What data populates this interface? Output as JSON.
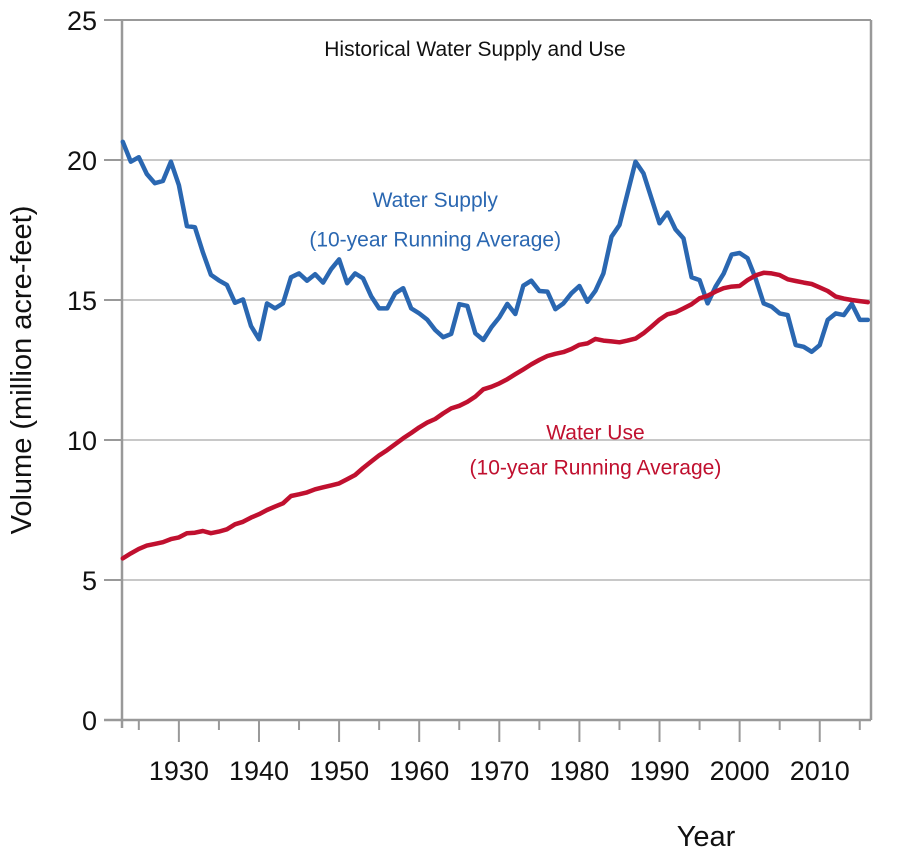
{
  "chart_data": {
    "type": "line",
    "title": "Historical Water Supply and Use",
    "xlabel": "Year",
    "ylabel": "Volume (million acre-feet)",
    "xlim": [
      1923,
      2016
    ],
    "ylim": [
      0,
      25
    ],
    "grid": true,
    "x_ticks": [
      1930,
      1940,
      1950,
      1960,
      1970,
      1980,
      1990,
      2000,
      2010
    ],
    "x_minor_ticks": [
      1925,
      1935,
      1945,
      1955,
      1965,
      1975,
      1985,
      1995,
      2005,
      2015
    ],
    "y_ticks": [
      0,
      5,
      10,
      15,
      20,
      25
    ],
    "legend": "none (inline annotations)",
    "series": [
      {
        "name": "Water Supply (10-year Running Average)",
        "color": "#2a67b1",
        "x": [
          1923,
          1924,
          1925,
          1926,
          1927,
          1928,
          1929,
          1930,
          1931,
          1932,
          1933,
          1934,
          1935,
          1936,
          1937,
          1938,
          1939,
          1940,
          1941,
          1942,
          1943,
          1944,
          1945,
          1946,
          1947,
          1948,
          1949,
          1950,
          1951,
          1952,
          1953,
          1954,
          1955,
          1956,
          1957,
          1958,
          1959,
          1960,
          1961,
          1962,
          1963,
          1964,
          1965,
          1966,
          1967,
          1968,
          1969,
          1970,
          1971,
          1972,
          1973,
          1974,
          1975,
          1976,
          1977,
          1978,
          1979,
          1980,
          1981,
          1982,
          1983,
          1984,
          1985,
          1986,
          1987,
          1988,
          1989,
          1990,
          1991,
          1992,
          1993,
          1994,
          1995,
          1996,
          1997,
          1998,
          1999,
          2000,
          2001,
          2002,
          2003,
          2004,
          2005,
          2006,
          2007,
          2008,
          2009,
          2010,
          2011,
          2012,
          2013,
          2014,
          2015,
          2016
        ],
        "values": [
          20.65,
          19.94,
          20.1,
          19.5,
          19.17,
          19.25,
          19.94,
          19.1,
          17.64,
          17.6,
          16.7,
          15.9,
          15.7,
          15.54,
          14.9,
          15.02,
          14.07,
          13.6,
          14.88,
          14.7,
          14.88,
          15.81,
          15.95,
          15.69,
          15.92,
          15.62,
          16.1,
          16.45,
          15.6,
          15.95,
          15.77,
          15.14,
          14.7,
          14.7,
          15.24,
          15.42,
          14.7,
          14.52,
          14.3,
          13.93,
          13.67,
          13.79,
          14.85,
          14.79,
          13.81,
          13.57,
          14.02,
          14.38,
          14.86,
          14.5,
          15.51,
          15.69,
          15.32,
          15.3,
          14.67,
          14.88,
          15.24,
          15.5,
          14.94,
          15.33,
          15.95,
          17.26,
          17.68,
          18.81,
          19.94,
          19.52,
          18.63,
          17.74,
          18.12,
          17.52,
          17.2,
          15.81,
          15.71,
          14.88,
          15.48,
          15.94,
          16.62,
          16.68,
          16.49,
          15.77,
          14.88,
          14.76,
          14.52,
          14.46,
          13.39,
          13.33,
          13.15,
          13.39,
          14.29,
          14.52,
          14.46,
          14.86,
          14.29,
          14.29
        ]
      },
      {
        "name": "Water Use (10-year Running Average)",
        "color": "#c0102f",
        "x": [
          1923,
          1924,
          1925,
          1926,
          1927,
          1928,
          1929,
          1930,
          1931,
          1932,
          1933,
          1934,
          1935,
          1936,
          1937,
          1938,
          1939,
          1940,
          1941,
          1942,
          1943,
          1944,
          1945,
          1946,
          1947,
          1948,
          1949,
          1950,
          1951,
          1952,
          1953,
          1954,
          1955,
          1956,
          1957,
          1958,
          1959,
          1960,
          1961,
          1962,
          1963,
          1964,
          1965,
          1966,
          1967,
          1968,
          1969,
          1970,
          1971,
          1972,
          1973,
          1974,
          1975,
          1976,
          1977,
          1978,
          1979,
          1980,
          1981,
          1982,
          1983,
          1984,
          1985,
          1986,
          1987,
          1988,
          1989,
          1990,
          1991,
          1992,
          1993,
          1994,
          1995,
          1996,
          1997,
          1998,
          1999,
          2000,
          2001,
          2002,
          2003,
          2004,
          2005,
          2006,
          2007,
          2008,
          2009,
          2010,
          2011,
          2012,
          2013,
          2014,
          2015,
          2016
        ],
        "values": [
          5.77,
          5.95,
          6.11,
          6.23,
          6.29,
          6.35,
          6.46,
          6.52,
          6.67,
          6.69,
          6.75,
          6.67,
          6.73,
          6.81,
          6.99,
          7.08,
          7.23,
          7.35,
          7.5,
          7.62,
          7.74,
          8.0,
          8.06,
          8.13,
          8.24,
          8.31,
          8.38,
          8.45,
          8.6,
          8.75,
          9.0,
          9.23,
          9.45,
          9.64,
          9.85,
          10.06,
          10.25,
          10.45,
          10.62,
          10.75,
          10.95,
          11.13,
          11.22,
          11.36,
          11.55,
          11.81,
          11.9,
          12.02,
          12.17,
          12.35,
          12.52,
          12.7,
          12.86,
          13.0,
          13.08,
          13.14,
          13.25,
          13.4,
          13.45,
          13.61,
          13.55,
          13.52,
          13.49,
          13.55,
          13.62,
          13.81,
          14.05,
          14.3,
          14.49,
          14.56,
          14.7,
          14.85,
          15.06,
          15.15,
          15.3,
          15.42,
          15.48,
          15.5,
          15.71,
          15.88,
          15.97,
          15.95,
          15.89,
          15.74,
          15.68,
          15.62,
          15.57,
          15.45,
          15.32,
          15.12,
          15.05,
          15.0,
          14.96,
          14.92
        ]
      }
    ],
    "annotations": [
      {
        "series": 0,
        "lines": [
          "Water Supply",
          "(10-year Running Average)"
        ],
        "color": "#2a67b1",
        "at_x": 1962,
        "at_y": [
          18.6,
          17.2
        ]
      },
      {
        "series": 1,
        "lines": [
          "Water Use",
          "(10-year Running Average)"
        ],
        "color": "#c0102f",
        "at_x": 1982,
        "at_y": [
          10.3,
          9.05
        ]
      }
    ],
    "colors": {
      "axis": "#999999",
      "grid": "#c8c8c8",
      "text": "#111111"
    }
  }
}
